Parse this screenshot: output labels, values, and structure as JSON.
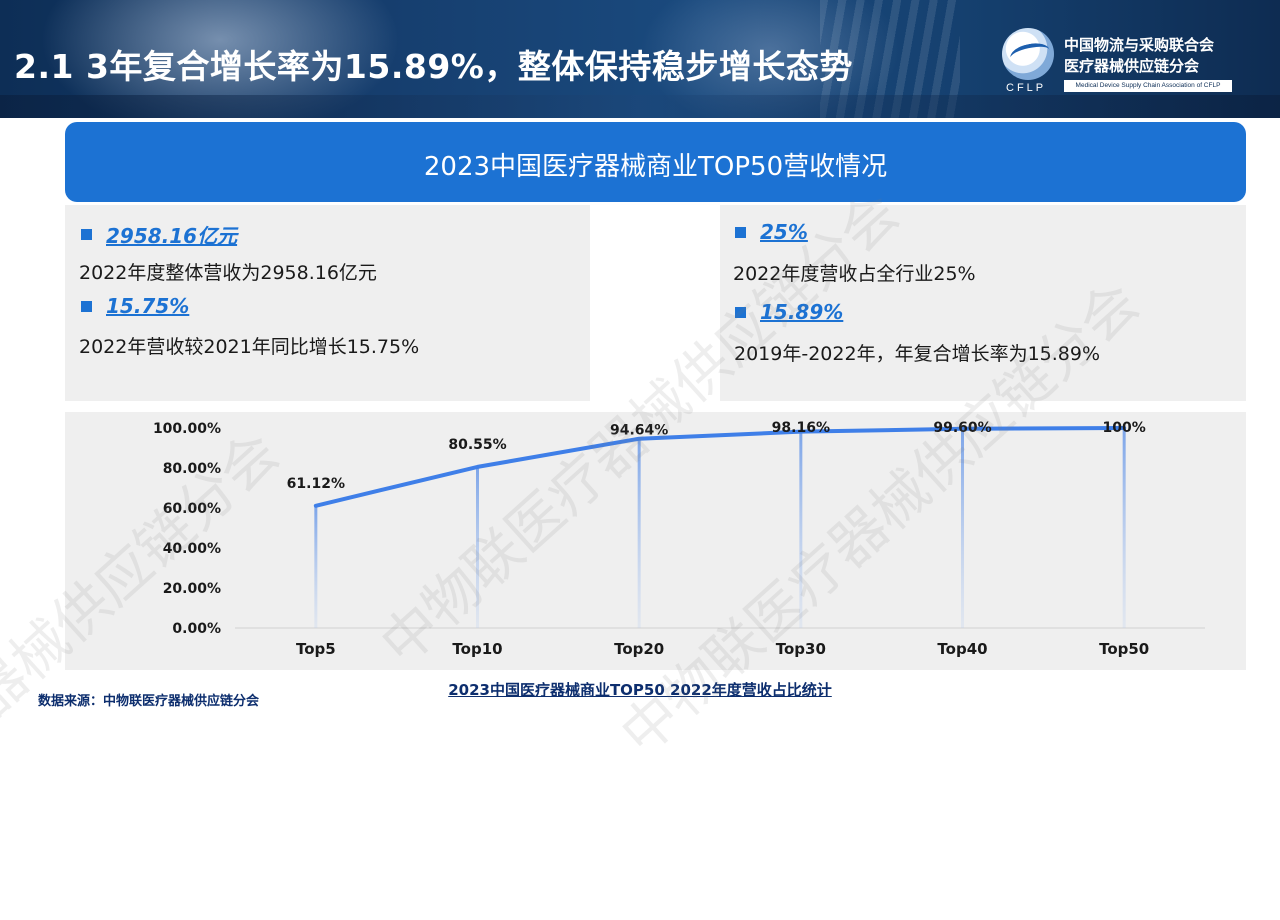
{
  "header": {
    "title": "2.1 3年复合增长率为15.89%，整体保持稳步增长态势",
    "logo": {
      "abbr": "CFLP",
      "name_line1": "中国物流与采购联合会",
      "name_line2": "医疗器械供应链分会",
      "english": "Medical Device Supply Chain Association of CFLP"
    }
  },
  "banner": {
    "title": "2023中国医疗器械商业TOP50营收情况"
  },
  "stats": [
    {
      "value": "2958.16亿元",
      "desc": "2022年度整体营收为2958.16亿元"
    },
    {
      "value": "15.75%",
      "desc": "2022年营收较2021年同比增长15.75%"
    },
    {
      "value": "25%",
      "desc": "2022年度营收占全行业25%"
    },
    {
      "value": "15.89%",
      "desc": "2019年-2022年，年复合增长率为15.89%"
    }
  ],
  "chart_data": {
    "type": "line",
    "categories": [
      "Top5",
      "Top10",
      "Top20",
      "Top30",
      "Top40",
      "Top50"
    ],
    "values": [
      61.12,
      80.55,
      94.64,
      98.16,
      99.6,
      100
    ],
    "data_labels": [
      "61.12%",
      "80.55%",
      "94.64%",
      "98.16%",
      "99.60%",
      "100%"
    ],
    "y_ticks": [
      "0.00%",
      "20.00%",
      "40.00%",
      "60.00%",
      "80.00%",
      "100.00%"
    ],
    "ylim": [
      0,
      100
    ],
    "grid": false,
    "line_color": "#3f7fe8",
    "title": "2023中国医疗器械商业TOP50 2022年度营收占比统计"
  },
  "footer": {
    "source": "数据来源：中物联医疗器械供应链分会"
  },
  "watermark": {
    "text": "中物联医疗器械供应链分会"
  },
  "colors": {
    "accent": "#1c72d3",
    "header_bg": "#163e6e",
    "panel_bg": "#efefef"
  }
}
